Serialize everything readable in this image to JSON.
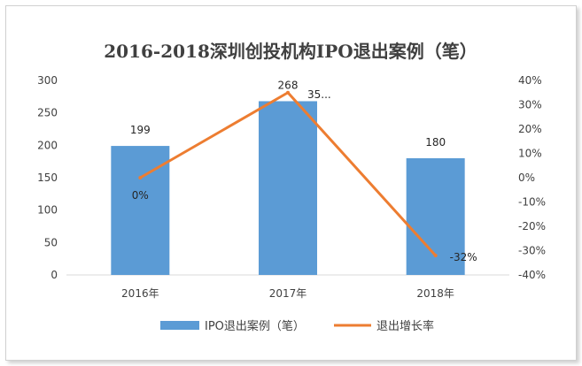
{
  "chart_data": {
    "type": "bar",
    "title": "2016-2018深圳创投机构IPO退出案例（笔）",
    "categories": [
      "2016年",
      "2017年",
      "2018年"
    ],
    "series": [
      {
        "name": "IPO退出案例（笔）",
        "type": "bar",
        "axis": "left",
        "values": [
          199,
          268,
          180
        ],
        "labels": [
          "199",
          "268",
          "180"
        ],
        "color": "#5B9BD5"
      },
      {
        "name": "退出增长率",
        "type": "line",
        "axis": "right",
        "values": [
          0,
          35,
          -32
        ],
        "labels": [
          "0%",
          "35...",
          "-32%"
        ],
        "color": "#ED7D31"
      }
    ],
    "y_left": {
      "min": 0,
      "max": 300,
      "step": 50,
      "ticks": [
        "0",
        "50",
        "100",
        "150",
        "200",
        "250",
        "300"
      ]
    },
    "y_right": {
      "min": -40,
      "max": 40,
      "step": 10,
      "ticks": [
        "-40%",
        "-30%",
        "-20%",
        "-10%",
        "0%",
        "10%",
        "20%",
        "30%",
        "40%"
      ]
    },
    "grid": false,
    "legend_position": "bottom"
  }
}
